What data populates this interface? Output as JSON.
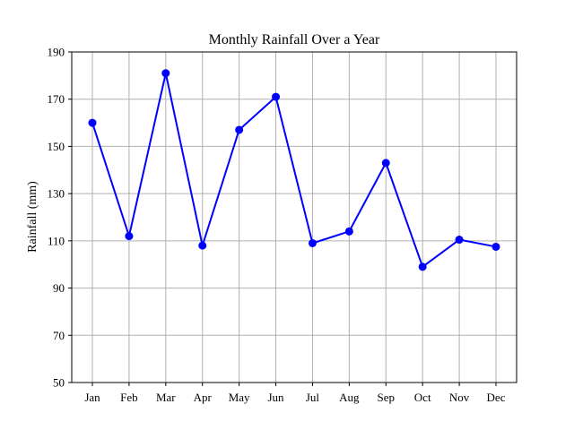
{
  "chart_data": {
    "type": "line",
    "title": "Monthly Rainfall Over a Year",
    "xlabel": "",
    "ylabel": "Rainfall (mm)",
    "categories": [
      "Jan",
      "Feb",
      "Mar",
      "Apr",
      "May",
      "Jun",
      "Jul",
      "Aug",
      "Sep",
      "Oct",
      "Nov",
      "Dec"
    ],
    "series": [
      {
        "values": [
          160,
          112,
          181,
          108,
          157,
          171,
          109,
          114,
          143,
          99,
          110.5,
          107.5
        ],
        "color": "#0000ff",
        "marker": "circle"
      }
    ],
    "ylim": [
      50,
      190
    ],
    "yticks": [
      50,
      70,
      90,
      110,
      130,
      150,
      170,
      190
    ],
    "grid": true,
    "legend": "none"
  }
}
